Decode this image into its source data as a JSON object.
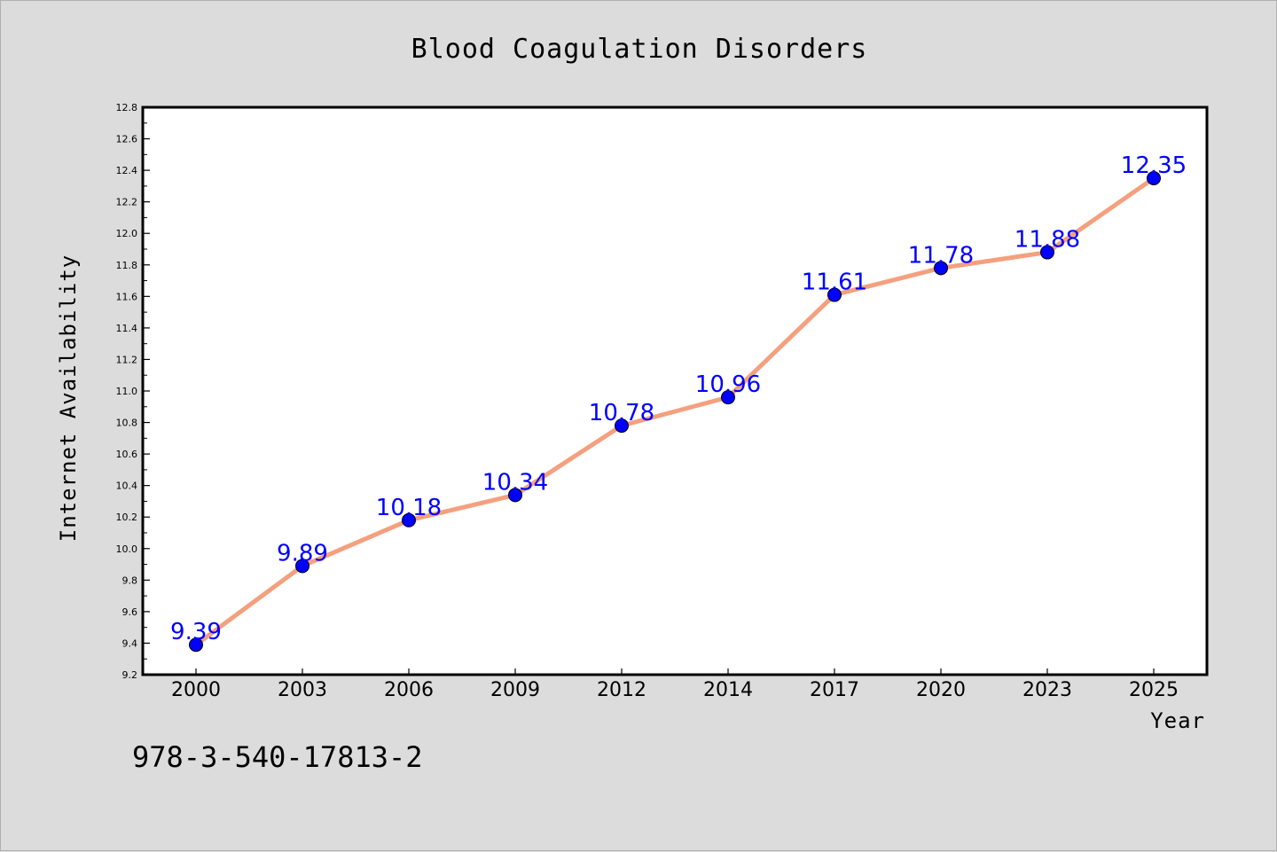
{
  "chart_data": {
    "type": "line",
    "title": "Blood Coagulation Disorders",
    "xlabel": "Year",
    "ylabel": "Internet Availability",
    "categories": [
      "2000",
      "2003",
      "2006",
      "2009",
      "2012",
      "2014",
      "2017",
      "2020",
      "2023",
      "2025"
    ],
    "series": [
      {
        "values": [
          9.39,
          9.89,
          10.18,
          10.34,
          10.78,
          10.96,
          11.61,
          11.78,
          11.88,
          12.35
        ],
        "line_color": "#f4a07e",
        "marker_color": "#0000ff",
        "label_color": "#0000ff"
      }
    ],
    "data_labels": [
      "9.39",
      "9.89",
      "10.18",
      "10.34",
      "10.78",
      "10.96",
      "11.61",
      "11.78",
      "11.88",
      "12.35"
    ],
    "ylim": [
      9.2,
      12.8
    ],
    "yticks": [
      9.2,
      9.4,
      9.6,
      9.8,
      10.0,
      10.2,
      10.4,
      10.6,
      10.8,
      11.0,
      11.2,
      11.4,
      11.6,
      11.8,
      12.0,
      12.2,
      12.4,
      12.6,
      12.8
    ],
    "ytick_labels": [
      "9.2",
      "9.4",
      "9.6",
      "9.8",
      "10.0",
      "10.2",
      "10.4",
      "10.6",
      "10.8",
      "11.0",
      "11.2",
      "11.4",
      "11.6",
      "11.8",
      "12.0",
      "12.2",
      "12.4",
      "12.6",
      "12.8"
    ],
    "grid": false,
    "legend": "none"
  },
  "annotation": {
    "isbn": "978-3-540-17813-2"
  },
  "colors": {
    "background": "#dcdcdc",
    "plot_background": "#ffffff"
  }
}
